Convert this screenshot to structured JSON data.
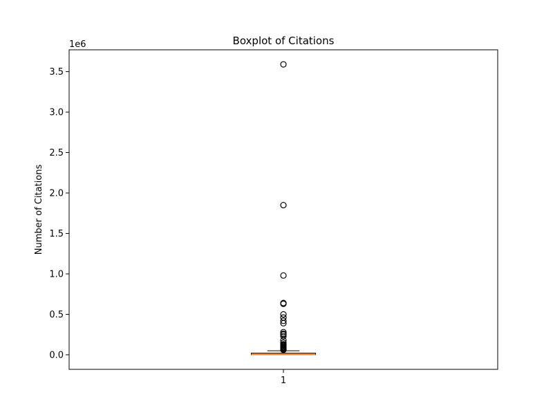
{
  "chart_data": {
    "type": "boxplot",
    "title": "Boxplot of Citations",
    "ylabel": "Number of Citations",
    "xlabel": "",
    "y_offset_label": "1e6",
    "x_ticks": [
      "1"
    ],
    "y_ticks": [
      "0.0",
      "0.5",
      "1.0",
      "1.5",
      "2.0",
      "2.5",
      "3.0",
      "3.5"
    ],
    "y_tick_values": [
      0,
      500000,
      1000000,
      1500000,
      2000000,
      2500000,
      3000000,
      3500000
    ],
    "ylim": [
      -180000,
      3770000
    ],
    "xlim": [
      0.5,
      1.5
    ],
    "box_color": "#f4a460",
    "median_color": "#ff7f0e",
    "series": [
      {
        "position": 1,
        "whisker_low": 0,
        "q1": 100,
        "median": 2000,
        "q3": 20000,
        "whisker_high": 50000,
        "outliers": [
          3590000,
          1850000,
          980000,
          640000,
          630000,
          500000,
          460000,
          420000,
          390000,
          280000,
          260000,
          250000,
          230000,
          180000,
          150000,
          130000,
          120000,
          110000,
          100000,
          90000,
          80000,
          70000,
          60000
        ]
      }
    ]
  }
}
